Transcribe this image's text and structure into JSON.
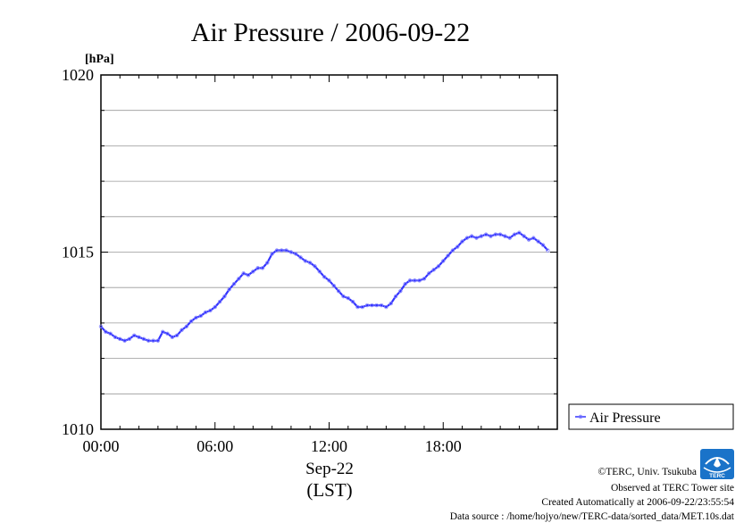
{
  "chart_data": {
    "type": "line",
    "title": "Air Pressure / 2006-09-22",
    "unit_label": "[hPa]",
    "xlabel_date": "Sep-22",
    "xlabel_tz": "(LST)",
    "ylim": [
      1010,
      1020
    ],
    "xlim_hours": [
      0,
      24
    ],
    "y_ticks": [
      "1010",
      "1015",
      "1020"
    ],
    "x_ticks": [
      {
        "hour": 0,
        "label": "00:00"
      },
      {
        "hour": 6,
        "label": "06:00"
      },
      {
        "hour": 12,
        "label": "12:00"
      },
      {
        "hour": 18,
        "label": "18:00"
      }
    ],
    "grid": true,
    "legend_position": "right",
    "series": [
      {
        "name": "Air Pressure",
        "color": "#3333ff",
        "x_hours": [
          0,
          0.25,
          0.5,
          0.75,
          1,
          1.25,
          1.5,
          1.75,
          2,
          2.25,
          2.5,
          2.75,
          3,
          3.25,
          3.5,
          3.75,
          4,
          4.25,
          4.5,
          4.75,
          5,
          5.25,
          5.5,
          5.75,
          6,
          6.25,
          6.5,
          6.75,
          7,
          7.25,
          7.5,
          7.75,
          8,
          8.25,
          8.5,
          8.75,
          9,
          9.25,
          9.5,
          9.75,
          10,
          10.25,
          10.5,
          10.75,
          11,
          11.25,
          11.5,
          11.75,
          12,
          12.25,
          12.5,
          12.75,
          13,
          13.25,
          13.5,
          13.75,
          14,
          14.25,
          14.5,
          14.75,
          15,
          15.25,
          15.5,
          15.75,
          16,
          16.25,
          16.5,
          16.75,
          17,
          17.25,
          17.5,
          17.75,
          18,
          18.25,
          18.5,
          18.75,
          19,
          19.25,
          19.5,
          19.75,
          20,
          20.25,
          20.5,
          20.75,
          21,
          21.25,
          21.5,
          21.75,
          22,
          22.25,
          22.5,
          22.75,
          23,
          23.25,
          23.5
        ],
        "values": [
          1012.9,
          1012.75,
          1012.7,
          1012.6,
          1012.55,
          1012.5,
          1012.55,
          1012.65,
          1012.6,
          1012.55,
          1012.5,
          1012.5,
          1012.5,
          1012.75,
          1012.7,
          1012.6,
          1012.65,
          1012.8,
          1012.9,
          1013.05,
          1013.15,
          1013.2,
          1013.3,
          1013.35,
          1013.45,
          1013.6,
          1013.75,
          1013.95,
          1014.1,
          1014.25,
          1014.4,
          1014.35,
          1014.45,
          1014.55,
          1014.55,
          1014.7,
          1014.95,
          1015.05,
          1015.05,
          1015.05,
          1015.0,
          1014.95,
          1014.85,
          1014.75,
          1014.7,
          1014.6,
          1014.45,
          1014.3,
          1014.2,
          1014.05,
          1013.9,
          1013.75,
          1013.7,
          1013.6,
          1013.45,
          1013.45,
          1013.5,
          1013.5,
          1013.5,
          1013.5,
          1013.45,
          1013.55,
          1013.75,
          1013.9,
          1014.1,
          1014.2,
          1014.2,
          1014.2,
          1014.25,
          1014.4,
          1014.5,
          1014.6,
          1014.75,
          1014.9,
          1015.05,
          1015.15,
          1015.3,
          1015.4,
          1015.45,
          1015.4,
          1015.45,
          1015.5,
          1015.45,
          1015.5,
          1015.5,
          1015.45,
          1015.4,
          1015.5,
          1015.55,
          1015.45,
          1015.35,
          1015.4,
          1015.3,
          1015.2,
          1015.05
        ]
      }
    ]
  },
  "footer": {
    "credit": "©TERC, Univ. Tsukuba",
    "observed": "Observed at TERC Tower site",
    "created": "Created Automatically at 2006-09-22/23:55:54",
    "source": "Data source : /home/hojyo/new/TERC-data/sorted_data/MET.10s.dat",
    "logo_text": "TERC"
  }
}
